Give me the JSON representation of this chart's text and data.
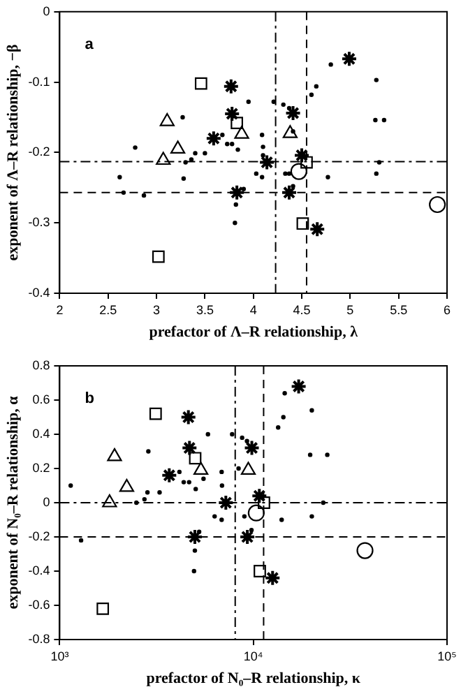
{
  "chart_data": [
    {
      "type": "scatter",
      "xlabel": "prefactor of Λ–R relationship, λ",
      "ylabel": "exponent of Λ–R relationship, −β",
      "annotations": [
        "a"
      ],
      "xlim": [
        2,
        6
      ],
      "xticks": [
        2,
        2.5,
        3,
        3.5,
        4,
        4.5,
        5,
        5.5,
        6
      ],
      "ylim": [
        -0.4,
        0
      ],
      "yticks": [
        -0.4,
        -0.3,
        -0.2,
        -0.1,
        0
      ],
      "grid": false,
      "legend": false,
      "ref_lines": [
        {
          "axis": "y",
          "value": -0.213,
          "line_style": "dashdot"
        },
        {
          "axis": "y",
          "value": -0.257,
          "line_style": "dashed"
        },
        {
          "axis": "x",
          "value": 4.23,
          "line_style": "dashdot"
        },
        {
          "axis": "x",
          "value": 4.55,
          "line_style": "dashed"
        }
      ],
      "series": [
        {
          "color": "#000000",
          "marker": "circle",
          "x": [
            2.62,
            2.66,
            2.78,
            2.87,
            3.27,
            3.28,
            3.3,
            3.36,
            3.4,
            3.5,
            3.68,
            3.73,
            3.78,
            3.95,
            3.84,
            3.82,
            3.81,
            3.9,
            4.09,
            4.1,
            4.1,
            4.03,
            4.09,
            4.21,
            4.31,
            4.37,
            4.41,
            4.33,
            4.37,
            4.41,
            4.6,
            4.65,
            4.8,
            4.77,
            5.3,
            5.27,
            5.26,
            5.35,
            5.27
          ],
          "values": [
            -0.235,
            -0.257,
            -0.193,
            -0.261,
            -0.15,
            -0.237,
            -0.214,
            -0.21,
            -0.201,
            -0.201,
            -0.175,
            -0.188,
            -0.188,
            -0.128,
            -0.196,
            -0.274,
            -0.3,
            -0.252,
            -0.175,
            -0.192,
            -0.204,
            -0.23,
            -0.235,
            -0.128,
            -0.132,
            -0.137,
            -0.17,
            -0.23,
            -0.23,
            -0.248,
            -0.118,
            -0.106,
            -0.075,
            -0.235,
            -0.214,
            -0.097,
            -0.154,
            -0.154,
            -0.23
          ]
        },
        {
          "color": "#000000",
          "marker": "cross",
          "x": [
            3.77,
            3.78,
            3.59,
            3.83,
            4.14,
            4.41,
            4.5,
            4.37,
            4.66,
            4.99
          ],
          "values": [
            -0.106,
            -0.145,
            -0.18,
            -0.257,
            -0.214,
            -0.144,
            -0.204,
            -0.257,
            -0.309,
            -0.067
          ]
        },
        {
          "color": "#000000",
          "marker": "square",
          "x": [
            3.02,
            3.46,
            3.83,
            4.55,
            4.51
          ],
          "values": [
            -0.348,
            -0.102,
            -0.158,
            -0.214,
            -0.301
          ]
        },
        {
          "color": "#000000",
          "marker": "triangle",
          "x": [
            3.11,
            3.22,
            3.07,
            3.88,
            4.38
          ],
          "values": [
            -0.156,
            -0.195,
            -0.211,
            -0.174,
            -0.173
          ]
        },
        {
          "color": "#000000",
          "marker": "circle",
          "x": [
            4.47,
            5.9
          ],
          "values": [
            -0.227,
            -0.274
          ]
        }
      ]
    },
    {
      "type": "scatter",
      "xlabel": "prefactor of N₀–R relationship, κ",
      "ylabel": "exponent of N₀–R relationship, α",
      "annotations": [
        "b"
      ],
      "log": "x",
      "xlim": [
        1000,
        100000
      ],
      "xticks": [
        {
          "value": 1000,
          "label": "10³"
        },
        {
          "value": 10000,
          "label": "10⁴"
        },
        {
          "value": 100000,
          "label": "10⁵"
        }
      ],
      "ylim": [
        -0.8,
        0.8
      ],
      "yticks": [
        -0.8,
        -0.6,
        -0.4,
        -0.2,
        0,
        0.2,
        0.4,
        0.6,
        0.8
      ],
      "grid": false,
      "legend": false,
      "ref_lines": [
        {
          "axis": "y",
          "value": 0,
          "line_style": "dashdot"
        },
        {
          "axis": "y",
          "value": -0.2,
          "line_style": "dashed"
        },
        {
          "axis": "x",
          "value": 8060,
          "line_style": "dashdot"
        },
        {
          "axis": "x",
          "value": 11300,
          "line_style": "dashed"
        }
      ],
      "series": [
        {
          "color": "#000000",
          "marker": "circle",
          "x": [
            1140,
            1290,
            2490,
            2740,
            2870,
            2840,
            3280,
            4150,
            4370,
            4660,
            5040,
            5530,
            5830,
            5250,
            4990,
            4940,
            6310,
            6860,
            6890,
            6860,
            7770,
            8750,
            9270,
            8390,
            8990,
            9780,
            13430,
            14290,
            14520,
            14000,
            20040,
            19650,
            24090,
            22960,
            20040
          ],
          "values": [
            0.1,
            -0.22,
            0,
            0.02,
            0.3,
            0.06,
            0.06,
            0.18,
            0.12,
            0.12,
            0.08,
            0.14,
            0.4,
            -0.17,
            -0.28,
            -0.4,
            -0.08,
            0.18,
            0.1,
            -0.1,
            0.4,
            0.38,
            0.36,
            0.2,
            -0.08,
            -0.16,
            0.44,
            0.5,
            0.64,
            -0.1,
            0.54,
            0.28,
            0.28,
            0,
            -0.08
          ]
        },
        {
          "color": "#000000",
          "marker": "cross",
          "x": [
            4620,
            4680,
            3680,
            9820,
            7210,
            10740,
            4990,
            9310,
            12570,
            17140
          ],
          "values": [
            0.5,
            0.32,
            0.16,
            0.32,
            0,
            0.04,
            -0.2,
            -0.2,
            -0.44,
            0.68
          ]
        },
        {
          "color": "#000000",
          "marker": "square",
          "x": [
            3130,
            5010,
            11350,
            10800,
            1670
          ],
          "values": [
            0.52,
            0.26,
            0,
            -0.4,
            -0.62
          ]
        },
        {
          "color": "#000000",
          "marker": "triangle",
          "x": [
            1920,
            2220,
            1810,
            5360,
            9420
          ],
          "values": [
            0.27,
            0.09,
            0,
            0.19,
            0.19
          ]
        },
        {
          "color": "#000000",
          "marker": "circle",
          "x": [
            10350,
            37700
          ],
          "values": [
            -0.06,
            -0.28
          ]
        }
      ]
    }
  ]
}
